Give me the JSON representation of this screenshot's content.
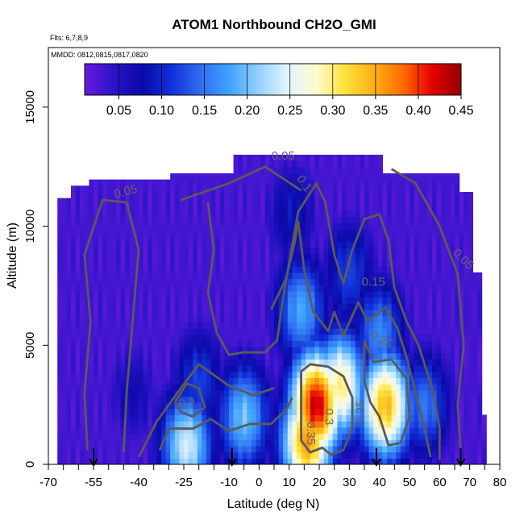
{
  "chart_data": {
    "type": "heatmap",
    "title": "ATOM1 Northbound CH2O_GMI",
    "flights_note": "Flts: 6,7,8,9",
    "dates_note": "MMDD: 0812,0815,0817,0820",
    "xlabel": "Latitude (deg N)",
    "ylabel": "Altitude (m)",
    "xlim": [
      -70,
      80
    ],
    "ylim": [
      0,
      17500
    ],
    "x_ticks": [
      "-70",
      "-55",
      "-40",
      "-25",
      "-10",
      "0",
      "10",
      "20",
      "30",
      "40",
      "50",
      "60",
      "70",
      "80"
    ],
    "x_tick_values": [
      -70,
      -55,
      -40,
      -25,
      -10,
      0,
      10,
      20,
      30,
      40,
      50,
      60,
      70,
      80
    ],
    "y_ticks": [
      "0",
      "5000",
      "10000",
      "15000"
    ],
    "y_tick_values": [
      0,
      5000,
      10000,
      15000
    ],
    "colorbar": {
      "range": [
        0.01,
        0.45
      ],
      "ticks": [
        "0.05",
        "0.10",
        "0.15",
        "0.20",
        "0.25",
        "0.30",
        "0.35",
        "0.40",
        "0.45"
      ],
      "tick_values": [
        0.05,
        0.1,
        0.15,
        0.2,
        0.25,
        0.3,
        0.35,
        0.4,
        0.45
      ],
      "placement": "top, inside plot"
    },
    "colors": {
      "scale": [
        "#6a1bdb",
        "#2a13c8",
        "#0a0aa8",
        "#1230d8",
        "#2f6ef0",
        "#3fa3ff",
        "#96cfff",
        "#e3f4ff",
        "#fffbd0",
        "#ffe13a",
        "#ffae16",
        "#ff6a00",
        "#e60000",
        "#900000"
      ]
    },
    "contour_labels": [
      "0.05",
      "0.05",
      "0.05",
      "0.1",
      "0.15",
      "0.2",
      "0.25",
      "0.3",
      "0.35",
      "0.35"
    ],
    "flight_arrow_latitudes": [
      -55,
      -9,
      39,
      67
    ],
    "field_blobs": [
      {
        "lat": 19,
        "alt": 2500,
        "value": 0.43
      },
      {
        "lat": 42,
        "alt": 2500,
        "value": 0.34
      },
      {
        "lat": 16,
        "alt": 1000,
        "value": 0.36
      },
      {
        "lat": 27,
        "alt": 3300,
        "value": 0.3
      },
      {
        "lat": -24,
        "alt": 800,
        "value": 0.24
      },
      {
        "lat": -5,
        "alt": 2000,
        "value": 0.2
      },
      {
        "lat": 14,
        "alt": 6500,
        "value": 0.18
      },
      {
        "lat": 40,
        "alt": 5500,
        "value": 0.16
      },
      {
        "lat": -20,
        "alt": 3500,
        "value": 0.12
      },
      {
        "lat": 55,
        "alt": 2500,
        "value": 0.15
      },
      {
        "lat": 11,
        "alt": 10500,
        "value": 0.09
      },
      {
        "lat": 30,
        "alt": 8000,
        "value": 0.12
      },
      {
        "lat": -42,
        "alt": 3000,
        "value": 0.07
      }
    ]
  }
}
